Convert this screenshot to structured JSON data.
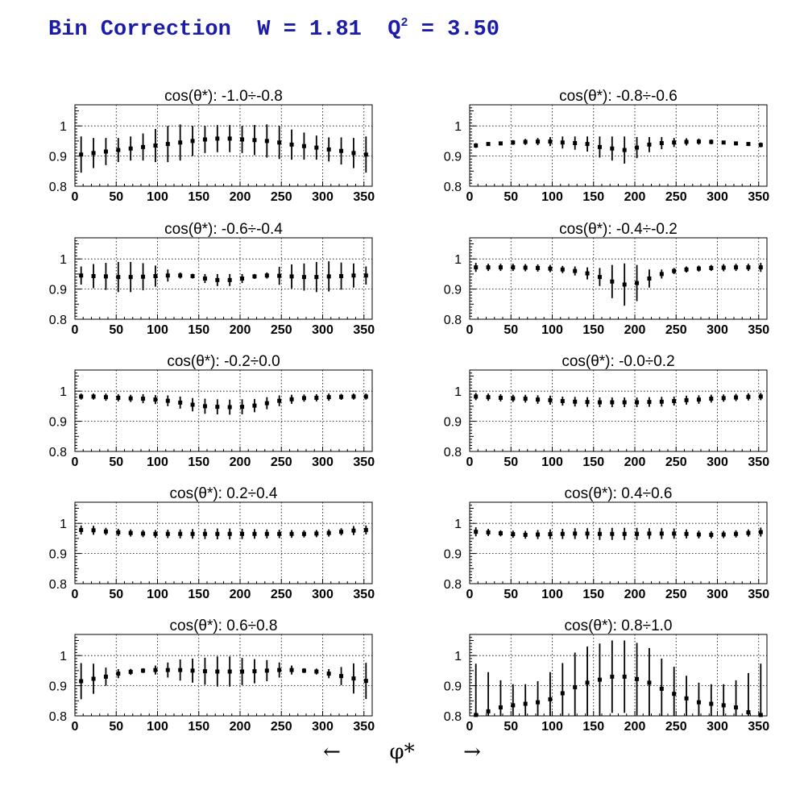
{
  "title": {
    "text_before_sup": "Bin Correction  W = 1.81  Q",
    "sup": "2",
    "text_after_sup": " = 3.50",
    "color": "#1c1ca8"
  },
  "axis_label": {
    "left_arrow": "←",
    "symbol": "φ*",
    "right_arrow": "→"
  },
  "chart_data": [
    {
      "type": "scatter",
      "title": "cos(θ*): -1.0÷-0.8",
      "xlim": [
        0,
        360
      ],
      "ylim": [
        0.8,
        1.07
      ],
      "xticks": [
        0,
        50,
        100,
        150,
        200,
        250,
        300,
        350
      ],
      "yticks": [
        0.8,
        0.9,
        1
      ],
      "grid": true,
      "x": [
        7.5,
        22.5,
        37.5,
        52.5,
        67.5,
        82.5,
        97.5,
        112.5,
        127.5,
        142.5,
        157.5,
        172.5,
        187.5,
        202.5,
        217.5,
        232.5,
        247.5,
        262.5,
        277.5,
        292.5,
        307.5,
        322.5,
        337.5,
        352.5
      ],
      "y": [
        0.905,
        0.91,
        0.915,
        0.92,
        0.925,
        0.93,
        0.935,
        0.94,
        0.945,
        0.95,
        0.955,
        0.958,
        0.958,
        0.955,
        0.953,
        0.95,
        0.945,
        0.938,
        0.933,
        0.928,
        0.922,
        0.917,
        0.91,
        0.905
      ],
      "err": [
        0.06,
        0.05,
        0.045,
        0.04,
        0.04,
        0.045,
        0.055,
        0.06,
        0.06,
        0.05,
        0.045,
        0.045,
        0.045,
        0.045,
        0.05,
        0.055,
        0.055,
        0.05,
        0.045,
        0.04,
        0.04,
        0.045,
        0.05,
        0.06
      ]
    },
    {
      "type": "scatter",
      "title": "cos(θ*): -0.8÷-0.6",
      "xlim": [
        0,
        360
      ],
      "ylim": [
        0.8,
        1.07
      ],
      "xticks": [
        0,
        50,
        100,
        150,
        200,
        250,
        300,
        350
      ],
      "yticks": [
        0.8,
        0.9,
        1
      ],
      "grid": true,
      "x": [
        7.5,
        22.5,
        37.5,
        52.5,
        67.5,
        82.5,
        97.5,
        112.5,
        127.5,
        142.5,
        157.5,
        172.5,
        187.5,
        202.5,
        217.5,
        232.5,
        247.5,
        262.5,
        277.5,
        292.5,
        307.5,
        322.5,
        337.5,
        352.5
      ],
      "y": [
        0.935,
        0.94,
        0.942,
        0.945,
        0.947,
        0.948,
        0.948,
        0.945,
        0.943,
        0.94,
        0.93,
        0.925,
        0.92,
        0.928,
        0.938,
        0.943,
        0.945,
        0.947,
        0.948,
        0.947,
        0.945,
        0.942,
        0.94,
        0.937
      ],
      "err": [
        0.008,
        0.006,
        0.006,
        0.008,
        0.01,
        0.012,
        0.015,
        0.02,
        0.022,
        0.025,
        0.035,
        0.04,
        0.045,
        0.035,
        0.025,
        0.02,
        0.015,
        0.012,
        0.01,
        0.008,
        0.006,
        0.006,
        0.006,
        0.008
      ]
    },
    {
      "type": "scatter",
      "title": "cos(θ*): -0.6÷-0.4",
      "xlim": [
        0,
        360
      ],
      "ylim": [
        0.8,
        1.07
      ],
      "xticks": [
        0,
        50,
        100,
        150,
        200,
        250,
        300,
        350
      ],
      "yticks": [
        0.8,
        0.9,
        1
      ],
      "grid": true,
      "x": [
        7.5,
        22.5,
        37.5,
        52.5,
        67.5,
        82.5,
        97.5,
        112.5,
        127.5,
        142.5,
        157.5,
        172.5,
        187.5,
        202.5,
        217.5,
        232.5,
        247.5,
        262.5,
        277.5,
        292.5,
        307.5,
        322.5,
        337.5,
        352.5
      ],
      "y": [
        0.945,
        0.943,
        0.942,
        0.94,
        0.94,
        0.941,
        0.943,
        0.945,
        0.945,
        0.943,
        0.935,
        0.93,
        0.93,
        0.935,
        0.942,
        0.945,
        0.944,
        0.942,
        0.94,
        0.94,
        0.942,
        0.943,
        0.945,
        0.945
      ],
      "err": [
        0.03,
        0.04,
        0.045,
        0.05,
        0.05,
        0.045,
        0.035,
        0.02,
        0.01,
        0.008,
        0.015,
        0.02,
        0.02,
        0.015,
        0.008,
        0.01,
        0.03,
        0.04,
        0.045,
        0.05,
        0.05,
        0.045,
        0.04,
        0.03
      ]
    },
    {
      "type": "scatter",
      "title": "cos(θ*): -0.4÷-0.2",
      "xlim": [
        0,
        360
      ],
      "ylim": [
        0.8,
        1.07
      ],
      "xticks": [
        0,
        50,
        100,
        150,
        200,
        250,
        300,
        350
      ],
      "yticks": [
        0.8,
        0.9,
        1
      ],
      "grid": true,
      "x": [
        7.5,
        22.5,
        37.5,
        52.5,
        67.5,
        82.5,
        97.5,
        112.5,
        127.5,
        142.5,
        157.5,
        172.5,
        187.5,
        202.5,
        217.5,
        232.5,
        247.5,
        262.5,
        277.5,
        292.5,
        307.5,
        322.5,
        337.5,
        352.5
      ],
      "y": [
        0.972,
        0.972,
        0.972,
        0.972,
        0.971,
        0.97,
        0.968,
        0.965,
        0.96,
        0.952,
        0.94,
        0.925,
        0.915,
        0.92,
        0.935,
        0.95,
        0.96,
        0.965,
        0.968,
        0.97,
        0.971,
        0.972,
        0.972,
        0.972
      ],
      "err": [
        0.015,
        0.012,
        0.012,
        0.012,
        0.012,
        0.012,
        0.012,
        0.012,
        0.015,
        0.02,
        0.03,
        0.055,
        0.07,
        0.06,
        0.03,
        0.015,
        0.01,
        0.01,
        0.01,
        0.01,
        0.012,
        0.012,
        0.012,
        0.015
      ]
    },
    {
      "type": "scatter",
      "title": "cos(θ*): -0.2÷0.0",
      "xlim": [
        0,
        360
      ],
      "ylim": [
        0.8,
        1.07
      ],
      "xticks": [
        0,
        50,
        100,
        150,
        200,
        250,
        300,
        350
      ],
      "yticks": [
        0.8,
        0.9,
        1
      ],
      "grid": true,
      "x": [
        7.5,
        22.5,
        37.5,
        52.5,
        67.5,
        82.5,
        97.5,
        112.5,
        127.5,
        142.5,
        157.5,
        172.5,
        187.5,
        202.5,
        217.5,
        232.5,
        247.5,
        262.5,
        277.5,
        292.5,
        307.5,
        322.5,
        337.5,
        352.5
      ],
      "y": [
        0.982,
        0.982,
        0.98,
        0.978,
        0.976,
        0.975,
        0.972,
        0.968,
        0.962,
        0.955,
        0.95,
        0.948,
        0.947,
        0.948,
        0.952,
        0.96,
        0.968,
        0.973,
        0.977,
        0.978,
        0.98,
        0.981,
        0.982,
        0.982
      ],
      "err": [
        0.01,
        0.01,
        0.012,
        0.012,
        0.012,
        0.015,
        0.015,
        0.018,
        0.02,
        0.022,
        0.025,
        0.025,
        0.025,
        0.025,
        0.022,
        0.02,
        0.018,
        0.015,
        0.012,
        0.012,
        0.012,
        0.01,
        0.01,
        0.01
      ]
    },
    {
      "type": "scatter",
      "title": "cos(θ*): -0.0÷0.2",
      "xlim": [
        0,
        360
      ],
      "ylim": [
        0.8,
        1.07
      ],
      "xticks": [
        0,
        50,
        100,
        150,
        200,
        250,
        300,
        350
      ],
      "yticks": [
        0.8,
        0.9,
        1
      ],
      "grid": true,
      "x": [
        7.5,
        22.5,
        37.5,
        52.5,
        67.5,
        82.5,
        97.5,
        112.5,
        127.5,
        142.5,
        157.5,
        172.5,
        187.5,
        202.5,
        217.5,
        232.5,
        247.5,
        262.5,
        277.5,
        292.5,
        307.5,
        322.5,
        337.5,
        352.5
      ],
      "y": [
        0.982,
        0.98,
        0.978,
        0.976,
        0.975,
        0.972,
        0.97,
        0.967,
        0.965,
        0.964,
        0.963,
        0.963,
        0.963,
        0.963,
        0.964,
        0.965,
        0.967,
        0.97,
        0.972,
        0.975,
        0.977,
        0.979,
        0.981,
        0.982
      ],
      "err": [
        0.012,
        0.012,
        0.012,
        0.012,
        0.013,
        0.014,
        0.015,
        0.015,
        0.016,
        0.016,
        0.016,
        0.016,
        0.016,
        0.016,
        0.016,
        0.016,
        0.015,
        0.015,
        0.014,
        0.013,
        0.012,
        0.012,
        0.012,
        0.012
      ]
    },
    {
      "type": "scatter",
      "title": "cos(θ*): 0.2÷0.4",
      "xlim": [
        0,
        360
      ],
      "ylim": [
        0.8,
        1.07
      ],
      "xticks": [
        0,
        50,
        100,
        150,
        200,
        250,
        300,
        350
      ],
      "yticks": [
        0.8,
        0.9,
        1
      ],
      "grid": true,
      "x": [
        7.5,
        22.5,
        37.5,
        52.5,
        67.5,
        82.5,
        97.5,
        112.5,
        127.5,
        142.5,
        157.5,
        172.5,
        187.5,
        202.5,
        217.5,
        232.5,
        247.5,
        262.5,
        277.5,
        292.5,
        307.5,
        322.5,
        337.5,
        352.5
      ],
      "y": [
        0.978,
        0.977,
        0.973,
        0.97,
        0.968,
        0.966,
        0.965,
        0.965,
        0.965,
        0.965,
        0.965,
        0.965,
        0.965,
        0.965,
        0.965,
        0.965,
        0.965,
        0.965,
        0.965,
        0.966,
        0.968,
        0.972,
        0.976,
        0.978
      ],
      "err": [
        0.015,
        0.015,
        0.012,
        0.012,
        0.012,
        0.012,
        0.013,
        0.014,
        0.015,
        0.016,
        0.017,
        0.018,
        0.018,
        0.017,
        0.016,
        0.015,
        0.014,
        0.013,
        0.012,
        0.012,
        0.012,
        0.012,
        0.015,
        0.015
      ]
    },
    {
      "type": "scatter",
      "title": "cos(θ*): 0.4÷0.6",
      "xlim": [
        0,
        360
      ],
      "ylim": [
        0.8,
        1.07
      ],
      "xticks": [
        0,
        50,
        100,
        150,
        200,
        250,
        300,
        350
      ],
      "yticks": [
        0.8,
        0.9,
        1
      ],
      "grid": true,
      "x": [
        7.5,
        22.5,
        37.5,
        52.5,
        67.5,
        82.5,
        97.5,
        112.5,
        127.5,
        142.5,
        157.5,
        172.5,
        187.5,
        202.5,
        217.5,
        232.5,
        247.5,
        262.5,
        277.5,
        292.5,
        307.5,
        322.5,
        337.5,
        352.5
      ],
      "y": [
        0.972,
        0.97,
        0.967,
        0.964,
        0.962,
        0.963,
        0.964,
        0.965,
        0.966,
        0.966,
        0.965,
        0.965,
        0.965,
        0.965,
        0.966,
        0.966,
        0.966,
        0.965,
        0.963,
        0.962,
        0.963,
        0.965,
        0.968,
        0.971
      ],
      "err": [
        0.015,
        0.012,
        0.01,
        0.012,
        0.013,
        0.015,
        0.016,
        0.017,
        0.018,
        0.018,
        0.02,
        0.02,
        0.02,
        0.02,
        0.018,
        0.018,
        0.017,
        0.015,
        0.013,
        0.012,
        0.012,
        0.012,
        0.012,
        0.015
      ]
    },
    {
      "type": "scatter",
      "title": "cos(θ*): 0.6÷0.8",
      "xlim": [
        0,
        360
      ],
      "ylim": [
        0.8,
        1.07
      ],
      "xticks": [
        0,
        50,
        100,
        150,
        200,
        250,
        300,
        350
      ],
      "yticks": [
        0.8,
        0.9,
        1
      ],
      "grid": true,
      "x": [
        7.5,
        22.5,
        37.5,
        52.5,
        67.5,
        82.5,
        97.5,
        112.5,
        127.5,
        142.5,
        157.5,
        172.5,
        187.5,
        202.5,
        217.5,
        232.5,
        247.5,
        262.5,
        277.5,
        292.5,
        307.5,
        322.5,
        337.5,
        352.5
      ],
      "y": [
        0.915,
        0.923,
        0.93,
        0.94,
        0.946,
        0.95,
        0.952,
        0.952,
        0.952,
        0.95,
        0.948,
        0.947,
        0.947,
        0.947,
        0.948,
        0.95,
        0.952,
        0.952,
        0.95,
        0.947,
        0.94,
        0.932,
        0.924,
        0.916
      ],
      "err": [
        0.06,
        0.05,
        0.03,
        0.015,
        0.01,
        0.008,
        0.015,
        0.025,
        0.035,
        0.04,
        0.045,
        0.05,
        0.05,
        0.045,
        0.04,
        0.035,
        0.025,
        0.015,
        0.008,
        0.01,
        0.015,
        0.03,
        0.05,
        0.06
      ]
    },
    {
      "type": "scatter",
      "title": "cos(θ*): 0.8÷1.0",
      "xlim": [
        0,
        360
      ],
      "ylim": [
        0.8,
        1.07
      ],
      "xticks": [
        0,
        50,
        100,
        150,
        200,
        250,
        300,
        350
      ],
      "yticks": [
        0.8,
        0.9,
        1
      ],
      "grid": true,
      "x": [
        7.5,
        22.5,
        37.5,
        52.5,
        67.5,
        82.5,
        97.5,
        112.5,
        127.5,
        142.5,
        157.5,
        172.5,
        187.5,
        202.5,
        217.5,
        232.5,
        247.5,
        262.5,
        277.5,
        292.5,
        307.5,
        322.5,
        337.5,
        352.5
      ],
      "y": [
        0.803,
        0.815,
        0.828,
        0.835,
        0.84,
        0.845,
        0.855,
        0.875,
        0.895,
        0.91,
        0.92,
        0.93,
        0.93,
        0.922,
        0.91,
        0.89,
        0.873,
        0.858,
        0.845,
        0.84,
        0.835,
        0.828,
        0.812,
        0.803
      ],
      "err": [
        0.17,
        0.13,
        0.09,
        0.07,
        0.065,
        0.07,
        0.09,
        0.1,
        0.115,
        0.12,
        0.12,
        0.12,
        0.12,
        0.12,
        0.115,
        0.1,
        0.09,
        0.075,
        0.065,
        0.065,
        0.07,
        0.09,
        0.13,
        0.17
      ]
    }
  ]
}
